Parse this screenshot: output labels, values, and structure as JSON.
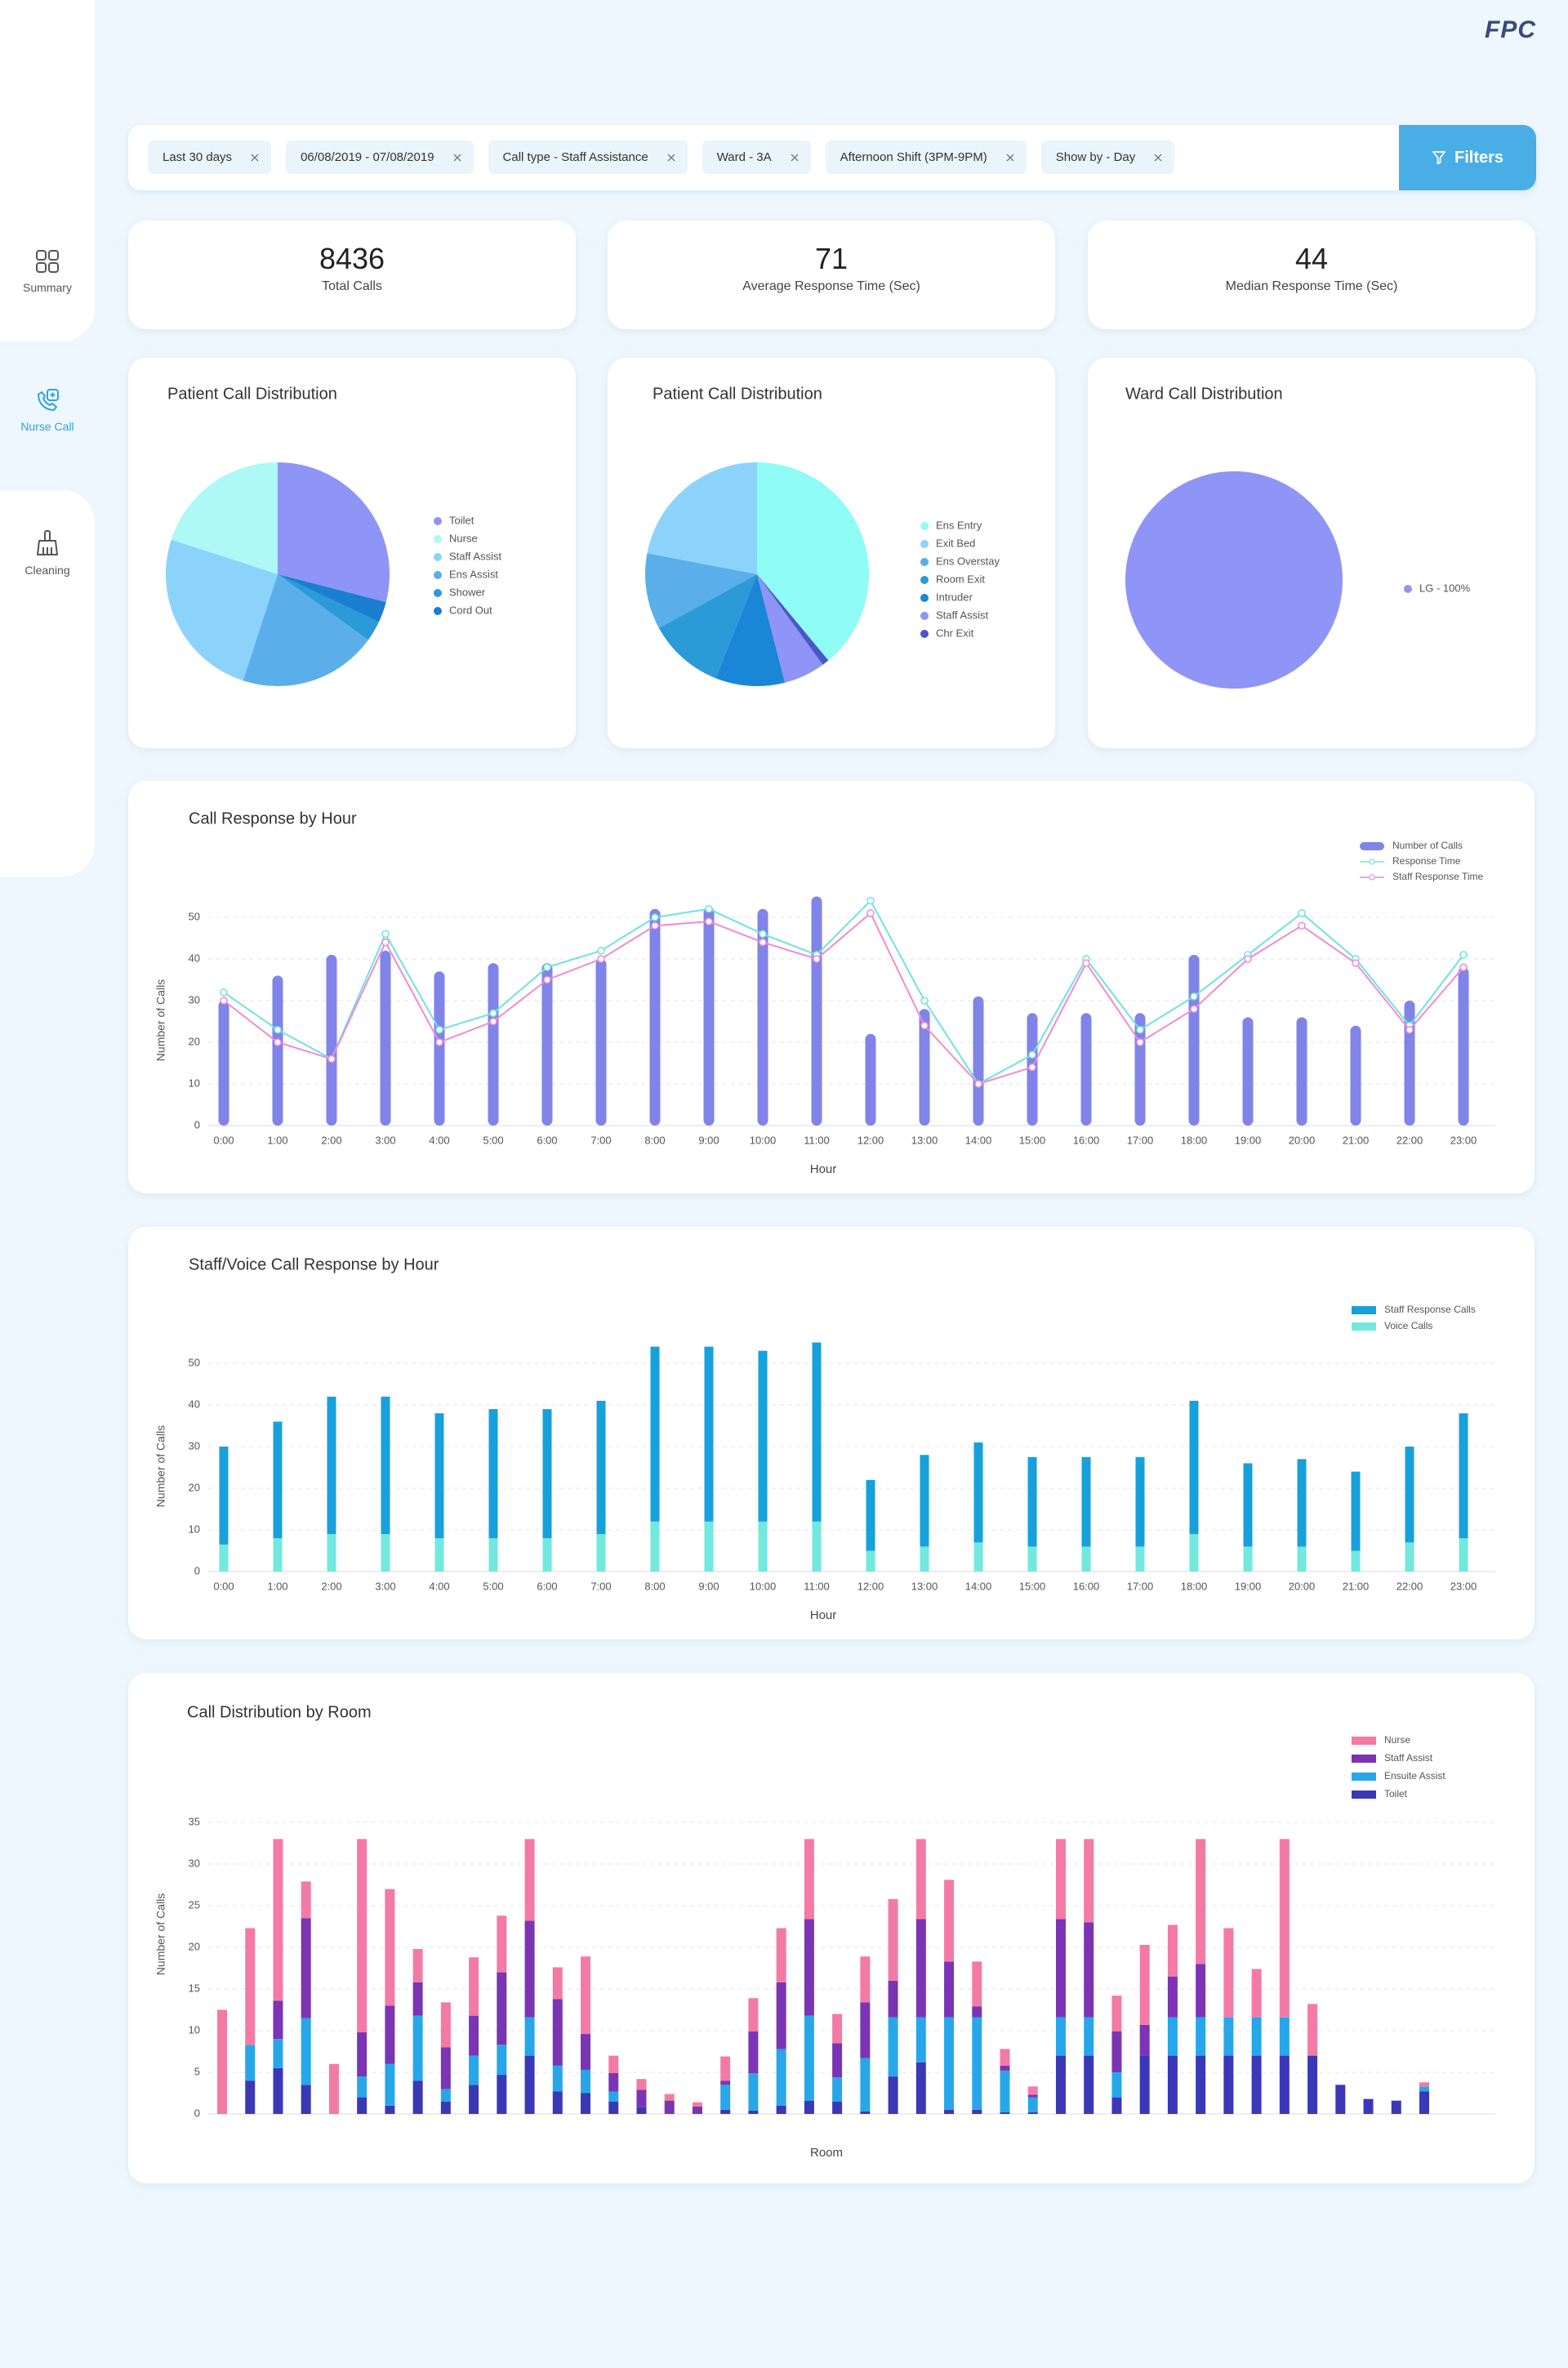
{
  "logo": "FPC",
  "sidebar": [
    {
      "label": "Summary"
    },
    {
      "label": "Nurse Call",
      "active": true
    },
    {
      "label": "Cleaning"
    }
  ],
  "filters": {
    "chips": [
      "Last 30 days",
      "06/08/2019 - 07/08/2019",
      "Call type - Staff Assistance",
      "Ward - 3A",
      "Afternoon Shift (3PM-9PM)",
      "Show by - Day"
    ],
    "button": "Filters"
  },
  "kpis": [
    {
      "value": 8436,
      "label": "Total Calls"
    },
    {
      "value": 71,
      "label": "Average Response Time (Sec)"
    },
    {
      "value": 44,
      "label": "Median Response Time (Sec)"
    }
  ],
  "chart_data": [
    {
      "type": "pie",
      "title": "Patient Call Distribution",
      "categories": [
        "Toilet",
        "Nurse",
        "Staff Assist",
        "Ens Assist",
        "Shower",
        "Cord Out"
      ],
      "values": [
        29,
        20,
        25,
        20,
        3,
        3
      ],
      "colors": [
        "#8f94f7",
        "#aef8f6",
        "#8cd3fb",
        "#5aaeea",
        "#2a9bd6",
        "#1a7fd0"
      ]
    },
    {
      "type": "pie",
      "title": "Patient Call Distribution",
      "categories": [
        "Ens Entry",
        "Exit Bed",
        "Ens Overstay",
        "Room Exit",
        "Intruder",
        "Staff Assist",
        "Chr Exit"
      ],
      "values": [
        39,
        22,
        11,
        11,
        10,
        6,
        1
      ],
      "colors": [
        "#8ffcf6",
        "#8cd3fb",
        "#5aaeea",
        "#2a9bd6",
        "#1a86d6",
        "#8f94f7",
        "#4a57c7"
      ]
    },
    {
      "type": "pie",
      "title": "Ward Call Distribution",
      "categories": [
        "LG - 100%"
      ],
      "values": [
        100
      ],
      "colors": [
        "#8f94f7"
      ]
    },
    {
      "type": "combo",
      "title": "Call Response by Hour",
      "xlabel": "Hour",
      "ylabel": "Number of Calls",
      "categories": [
        "0:00",
        "1:00",
        "2:00",
        "3:00",
        "4:00",
        "5:00",
        "6:00",
        "7:00",
        "8:00",
        "9:00",
        "10:00",
        "11:00",
        "12:00",
        "13:00",
        "14:00",
        "15:00",
        "16:00",
        "17:00",
        "18:00",
        "19:00",
        "20:00",
        "21:00",
        "22:00",
        "23:00"
      ],
      "ylim": [
        0,
        55
      ],
      "yticks": [
        0,
        10,
        20,
        30,
        40,
        50
      ],
      "grid": true,
      "series": [
        {
          "name": "Number of Calls",
          "type": "bar",
          "color": "#8084e8",
          "values": [
            30,
            36,
            41,
            42,
            37,
            39,
            39,
            40,
            52,
            52.5,
            52,
            55,
            22,
            28,
            31,
            27,
            27,
            27,
            41,
            26,
            26,
            24,
            30,
            38
          ]
        },
        {
          "name": "Response Time",
          "type": "line",
          "color": "#6fe3df",
          "values": [
            32,
            23,
            16,
            46,
            23,
            27,
            38,
            42,
            50,
            52,
            46,
            41,
            54,
            30,
            10,
            17,
            40,
            23,
            31,
            41,
            51,
            40,
            24,
            41
          ]
        },
        {
          "name": "Staff Response Time",
          "type": "line",
          "color": "#f08bd6",
          "values": [
            30,
            20,
            16,
            44,
            20,
            25,
            35,
            40,
            48,
            49,
            44,
            40,
            51,
            24,
            10,
            14,
            39,
            20,
            28,
            40,
            48,
            39,
            23,
            38
          ]
        }
      ]
    },
    {
      "type": "bar",
      "stacked": true,
      "title": "Staff/Voice Call Response by Hour",
      "xlabel": "Hour",
      "ylabel": "Number of Calls",
      "categories": [
        "0:00",
        "1:00",
        "2:00",
        "3:00",
        "4:00",
        "5:00",
        "6:00",
        "7:00",
        "8:00",
        "9:00",
        "10:00",
        "11:00",
        "12:00",
        "13:00",
        "14:00",
        "15:00",
        "16:00",
        "17:00",
        "18:00",
        "19:00",
        "20:00",
        "21:00",
        "22:00",
        "23:00"
      ],
      "ylim": [
        0,
        55
      ],
      "yticks": [
        0,
        10,
        20,
        30,
        40,
        50
      ],
      "grid": true,
      "series": [
        {
          "name": "Staff Response Calls",
          "color": "#16a1dc",
          "values": [
            23.5,
            28,
            33,
            33,
            30,
            31,
            31,
            32,
            42,
            42,
            41,
            43,
            17,
            22,
            24,
            21.5,
            21.5,
            21.5,
            32,
            20,
            21,
            19,
            23,
            30
          ]
        },
        {
          "name": "Voice Calls",
          "color": "#72e8de",
          "values": [
            6.5,
            8,
            9,
            9,
            8,
            8,
            8,
            9,
            12,
            12,
            12,
            12,
            5,
            6,
            7,
            6,
            6,
            6,
            9,
            6,
            6,
            5,
            7,
            8
          ]
        }
      ]
    },
    {
      "type": "bar",
      "stacked": true,
      "title": "Call Distribution by Room",
      "xlabel": "Room",
      "ylabel": "Number of Calls",
      "categories": [
        null,
        null,
        null,
        null,
        null,
        null,
        null,
        null,
        null,
        null,
        null,
        null,
        null,
        null,
        null,
        null,
        null,
        null,
        null,
        null,
        null,
        null,
        null,
        null,
        null,
        null,
        null,
        null,
        null,
        null,
        null,
        null,
        null,
        null,
        null,
        null,
        null,
        null,
        null,
        null,
        null,
        null,
        null,
        null
      ],
      "ylim": [
        0,
        35
      ],
      "yticks": [
        0,
        5,
        10,
        15,
        20,
        25,
        30,
        35
      ],
      "grid": true,
      "series": [
        {
          "name": "Nurse",
          "color": "#f47aa6",
          "values": [
            12.5,
            14,
            19.4,
            4.4,
            6,
            23.2,
            14,
            4,
            5.4,
            7,
            6.8,
            9.8,
            3.8,
            9.3,
            2.1,
            1.3,
            0.8,
            0.5,
            2.9,
            4,
            6.5,
            9.6,
            3.5,
            5.5,
            9.8,
            9.6,
            9.8,
            5.4,
            2,
            1,
            9.6,
            10,
            4.3,
            9.6,
            6.2,
            15,
            10.7,
            5.8,
            21.4,
            6.2,
            0,
            0,
            0,
            0.5
          ]
        },
        {
          "name": "Staff Assist",
          "color": "#7a34b4",
          "values": [
            0,
            0,
            4.6,
            12,
            0,
            5.3,
            7,
            4,
            5,
            4.8,
            8.7,
            11.6,
            8,
            4.3,
            2.2,
            2.1,
            1.6,
            0.9,
            0.5,
            5,
            8,
            11.6,
            4.1,
            6.7,
            4.4,
            11.8,
            6.7,
            1.3,
            0.6,
            0.3,
            11.8,
            11.4,
            4.9,
            3.7,
            4.9,
            6.4,
            0,
            0,
            0,
            0,
            0,
            0,
            0,
            0
          ]
        },
        {
          "name": "Ensuite Assist",
          "color": "#27a7ea",
          "values": [
            0,
            4.3,
            3.5,
            8,
            0,
            2.5,
            5,
            7.8,
            1.5,
            3.5,
            3.6,
            4.6,
            3.1,
            2.8,
            1.2,
            0,
            0,
            0,
            3,
            4.5,
            6.8,
            10.2,
            2.9,
            6.4,
            7.1,
            5.4,
            11.1,
            11.1,
            5,
            1.8,
            4.6,
            4.6,
            3,
            0,
            4.6,
            4.6,
            4.6,
            4.6,
            4.6,
            0,
            0,
            0,
            0,
            0.6
          ]
        },
        {
          "name": "Toilet",
          "color": "#3b38b8",
          "values": [
            0,
            4,
            5.5,
            3.5,
            0,
            2,
            1,
            4,
            1.5,
            3.5,
            4.7,
            7,
            2.7,
            2.5,
            1.5,
            0.8,
            0,
            0,
            0.5,
            0.4,
            1,
            1.6,
            1.5,
            0.3,
            4.5,
            6.2,
            0.5,
            0.5,
            0.2,
            0.2,
            7,
            7,
            2,
            7,
            7,
            7,
            7,
            7,
            7,
            7,
            3.5,
            1.8,
            1.6,
            2.7
          ]
        }
      ]
    }
  ]
}
